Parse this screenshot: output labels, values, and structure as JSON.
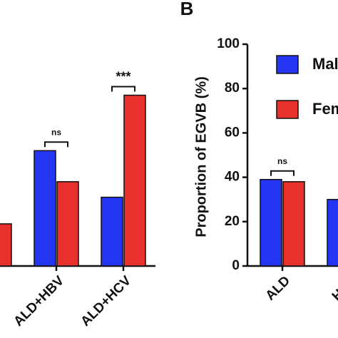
{
  "chart_data": [
    {
      "type": "bar",
      "categories": [
        null,
        "ALD+HBV",
        "ALD+HCV"
      ],
      "series": [
        {
          "name": "Male",
          "color": "#2436f2",
          "values": [
            null,
            52,
            31
          ]
        },
        {
          "name": "Female",
          "color": "#e8302c",
          "values": [
            19,
            38,
            77
          ]
        }
      ],
      "annotations": [
        null,
        "ns",
        "***"
      ],
      "ylim": [
        0,
        100
      ]
    },
    {
      "type": "bar",
      "panel_label": "B",
      "y_label": "Proportion of EGVB (%)",
      "categories": [
        "ALD",
        "HBV"
      ],
      "series": [
        {
          "name": "Male",
          "color": "#2436f2",
          "values": [
            39,
            30
          ]
        },
        {
          "name": "Female",
          "color": "#e8302c",
          "values": [
            38,
            null
          ]
        }
      ],
      "annotations": [
        "ns",
        null
      ],
      "ylim": [
        0,
        100
      ],
      "yticks": [
        0,
        20,
        40,
        60,
        80,
        100
      ],
      "legend": "top-right"
    }
  ]
}
